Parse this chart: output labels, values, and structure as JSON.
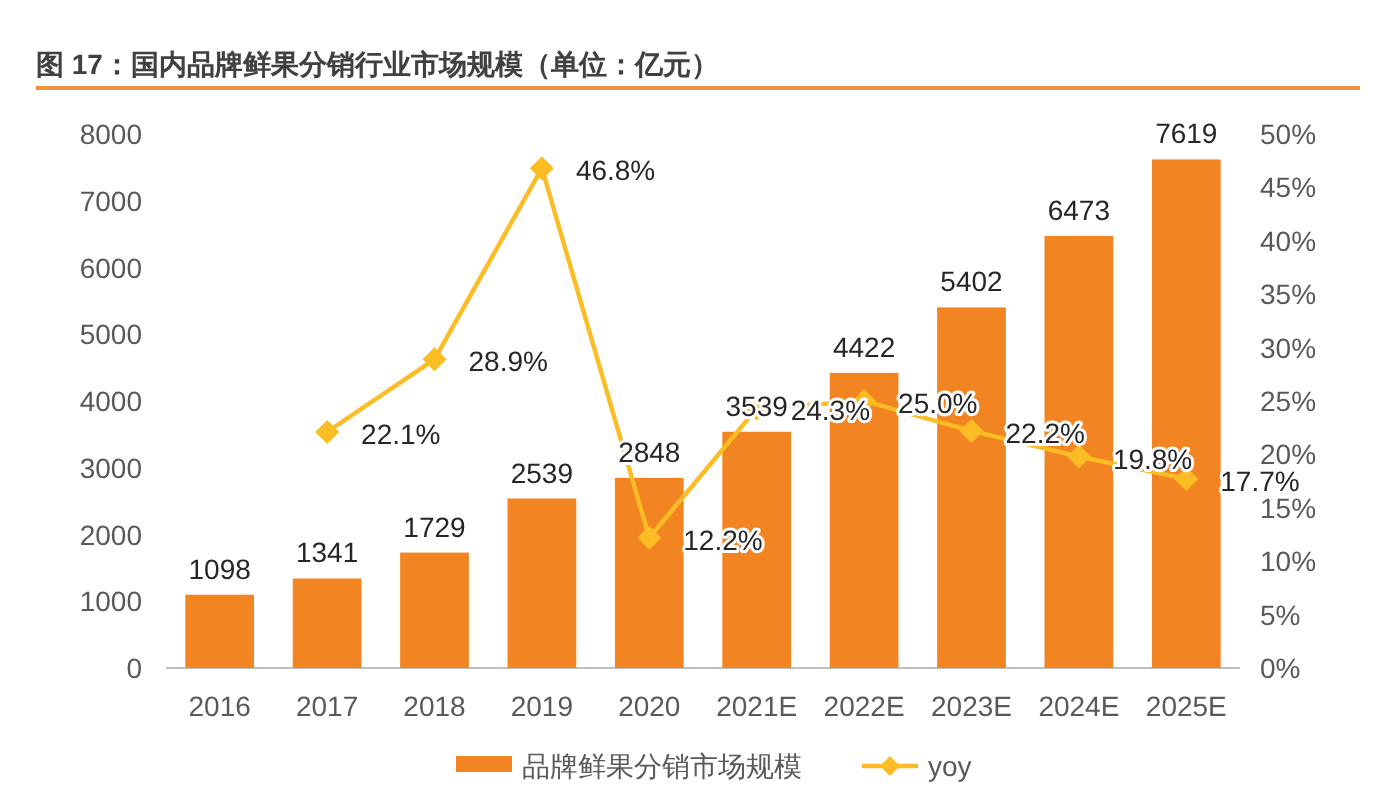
{
  "chart_data": {
    "type": "bar",
    "title": "图 17：国内品牌鲜果分销行业市场规模（单位：亿元）",
    "categories": [
      "2016",
      "2017",
      "2018",
      "2019",
      "2020",
      "2021E",
      "2022E",
      "2023E",
      "2024E",
      "2025E"
    ],
    "series": [
      {
        "name": "品牌鲜果分销市场规模",
        "color": "#f28422",
        "values": [
          1098,
          1341,
          1729,
          2539,
          2848,
          3539,
          4422,
          5402,
          6473,
          7619
        ],
        "value_labels": [
          "1098",
          "1341",
          "1729",
          "2539",
          "2848",
          "3539",
          "4422",
          "5402",
          "6473",
          "7619"
        ]
      },
      {
        "name": "yoy",
        "type": "line",
        "axis": "y2",
        "color": "#fbbc24",
        "marker": "diamond",
        "values": [
          null,
          22.1,
          28.9,
          46.8,
          12.2,
          24.3,
          25.0,
          22.2,
          19.8,
          17.7
        ],
        "value_labels": [
          null,
          "22.1%",
          "28.9%",
          "46.8%",
          "12.2%",
          "24.3%",
          "25.0%",
          "22.2%",
          "19.8%",
          "17.7%"
        ]
      }
    ],
    "ylim": [
      0,
      8000
    ],
    "yticks": [
      0,
      1000,
      2000,
      3000,
      4000,
      5000,
      6000,
      7000,
      8000
    ],
    "y2lim": [
      0,
      50
    ],
    "y2ticks": [
      {
        "value": 0,
        "label": "0%"
      },
      {
        "value": 5,
        "label": "5%"
      },
      {
        "value": 10,
        "label": "10%"
      },
      {
        "value": 15,
        "label": "15%"
      },
      {
        "value": 20,
        "label": "20%"
      },
      {
        "value": 25,
        "label": "25%"
      },
      {
        "value": 30,
        "label": "30%"
      },
      {
        "value": 35,
        "label": "35%"
      },
      {
        "value": 40,
        "label": "40%"
      },
      {
        "value": 45,
        "label": "45%"
      },
      {
        "value": 50,
        "label": "50%"
      }
    ],
    "grid": false,
    "legend": "bottom"
  }
}
